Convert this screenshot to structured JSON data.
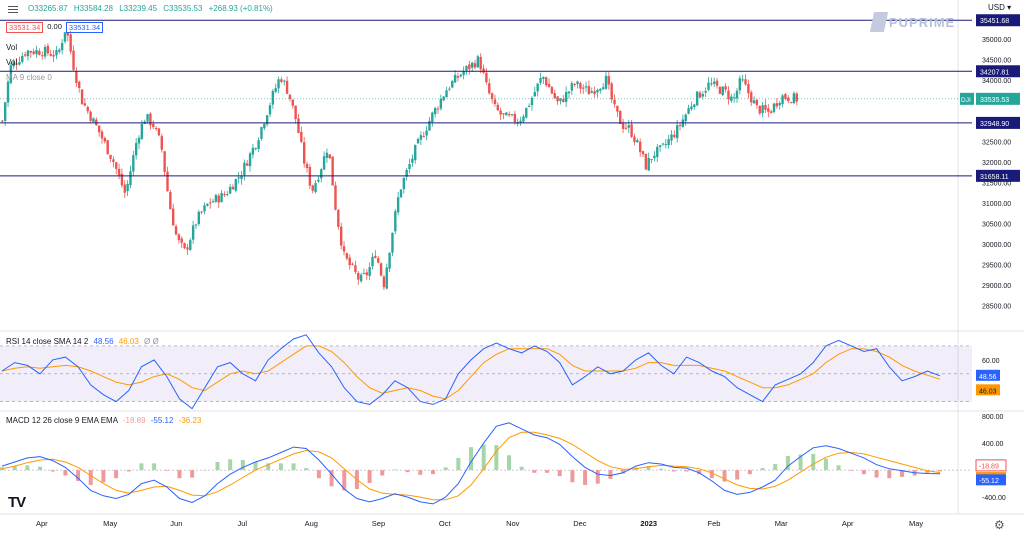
{
  "header": {
    "ohlc": {
      "open": "O33265.87",
      "high": "H33584.28",
      "low": "L33239.45",
      "close": "C33535.53",
      "change": "+268.93 (+0.81%)"
    },
    "sell_price": "33531.34",
    "spread": "0.00",
    "buy_price": "33531.34",
    "legend_vol_1": "Vol",
    "legend_vol_2": "Vol",
    "legend_ma": "MA 9 close 0",
    "currency": "USD",
    "brand": "PUPRIME"
  },
  "rsi_panel": {
    "label": "RSI 14 close SMA 14 2",
    "rsi_value": "48.56",
    "sma_value": "46.03",
    "extra": "Ø Ø"
  },
  "macd_panel": {
    "label": "MACD 12 26 close 9 EMA EMA",
    "hist_value": "-18.89",
    "macd_value": "-55.12",
    "signal_value": "-36.23"
  },
  "colors": {
    "up": "#26a69a",
    "down": "#ef5350",
    "level_line": "#1a1a7a",
    "rsi_line": "#2962ff",
    "rsi_sma": "#ff9800",
    "rsi_band": "#7e57c2",
    "last_price_line": "#26a69a"
  },
  "chart_data": [
    {
      "type": "candlestick",
      "symbol": "DJI",
      "x_ticks": [
        "Apr",
        "May",
        "Jun",
        "Jul",
        "Aug",
        "Sep",
        "Oct",
        "Nov",
        "Dec",
        "2023",
        "Feb",
        "Mar",
        "Apr",
        "May"
      ],
      "y_ticks": [
        28500,
        29000,
        29500,
        30000,
        30500,
        31000,
        31500,
        32000,
        32500,
        33000,
        33500,
        34000,
        34500,
        35000
      ],
      "y_tick_labels": [
        "28500.00",
        "29000.00",
        "29500.00",
        "30000.00",
        "30500.00",
        "31000.00",
        "31500.00",
        "32000.00",
        "32500.00",
        "33000.00",
        "33500.00",
        "34000.00",
        "34500.00",
        "35000.00"
      ],
      "ylim": [
        27900,
        35750
      ],
      "last_price_label": "DJI",
      "last_price": 33535.53,
      "last_price_text": "33535.53",
      "horizontal_levels": [
        {
          "value": 35451.68,
          "label": "35451.68"
        },
        {
          "value": 34207.81,
          "label": "34207.81"
        },
        {
          "value": 32948.9,
          "label": "32948.90"
        },
        {
          "value": 31658.11,
          "label": "31658.11"
        }
      ],
      "approx_close_path": [
        [
          0,
          33000
        ],
        [
          0.01,
          34300
        ],
        [
          0.03,
          34700
        ],
        [
          0.05,
          34700
        ],
        [
          0.07,
          34600
        ],
        [
          0.08,
          35300
        ],
        [
          0.09,
          34300
        ],
        [
          0.1,
          33500
        ],
        [
          0.12,
          32800
        ],
        [
          0.14,
          32000
        ],
        [
          0.155,
          31200
        ],
        [
          0.17,
          32600
        ],
        [
          0.18,
          33100
        ],
        [
          0.19,
          32900
        ],
        [
          0.2,
          32400
        ],
        [
          0.21,
          31000
        ],
        [
          0.22,
          30100
        ],
        [
          0.23,
          29800
        ],
        [
          0.245,
          30600
        ],
        [
          0.26,
          31000
        ],
        [
          0.28,
          31200
        ],
        [
          0.3,
          31700
        ],
        [
          0.32,
          32500
        ],
        [
          0.34,
          33600
        ],
        [
          0.35,
          34100
        ],
        [
          0.36,
          33700
        ],
        [
          0.37,
          33000
        ],
        [
          0.38,
          32000
        ],
        [
          0.39,
          31300
        ],
        [
          0.4,
          31800
        ],
        [
          0.41,
          32400
        ],
        [
          0.42,
          30800
        ],
        [
          0.43,
          29700
        ],
        [
          0.45,
          29100
        ],
        [
          0.46,
          29300
        ],
        [
          0.47,
          29800
        ],
        [
          0.48,
          29000
        ],
        [
          0.49,
          30200
        ],
        [
          0.5,
          31300
        ],
        [
          0.52,
          32300
        ],
        [
          0.54,
          33100
        ],
        [
          0.56,
          33800
        ],
        [
          0.58,
          34200
        ],
        [
          0.6,
          34500
        ],
        [
          0.61,
          33800
        ],
        [
          0.62,
          33300
        ],
        [
          0.63,
          33100
        ],
        [
          0.65,
          33000
        ],
        [
          0.66,
          33300
        ],
        [
          0.68,
          34100
        ],
        [
          0.7,
          33400
        ],
        [
          0.72,
          33900
        ],
        [
          0.74,
          33700
        ],
        [
          0.76,
          34000
        ],
        [
          0.77,
          33300
        ],
        [
          0.78,
          32900
        ],
        [
          0.79,
          32800
        ],
        [
          0.8,
          32400
        ],
        [
          0.81,
          31900
        ],
        [
          0.82,
          32200
        ],
        [
          0.83,
          32300
        ],
        [
          0.85,
          32800
        ],
        [
          0.87,
          33500
        ],
        [
          0.89,
          33900
        ],
        [
          0.91,
          33700
        ],
        [
          0.92,
          33500
        ],
        [
          0.93,
          34000
        ],
        [
          0.95,
          33300
        ],
        [
          0.965,
          33200
        ],
        [
          0.98,
          33600
        ],
        [
          1.0,
          33535.53
        ]
      ]
    },
    {
      "type": "line",
      "title": "RSI 14 close SMA 14 2",
      "y_ticks": [
        40,
        60
      ],
      "y_tick_labels": [
        "40.00",
        "60.00"
      ],
      "ylim": [
        24,
        80
      ],
      "band": [
        30,
        70
      ],
      "series": [
        {
          "name": "RSI",
          "values": [
            52,
            58,
            56,
            50,
            60,
            62,
            55,
            42,
            35,
            30,
            38,
            55,
            60,
            48,
            32,
            25,
            40,
            55,
            58,
            50,
            45,
            60,
            68,
            75,
            78,
            65,
            55,
            40,
            30,
            28,
            35,
            45,
            40,
            30,
            28,
            32,
            50,
            60,
            68,
            72,
            68,
            65,
            70,
            66,
            58,
            42,
            48,
            55,
            50,
            52,
            60,
            65,
            56,
            50,
            62,
            58,
            52,
            48,
            40,
            35,
            30,
            42,
            46,
            50,
            58,
            70,
            74,
            70,
            66,
            68,
            55,
            45,
            48,
            52,
            48.56
          ]
        },
        {
          "name": "SMA",
          "values": [
            52,
            54,
            55,
            54,
            55,
            56,
            55,
            52,
            48,
            44,
            42,
            44,
            48,
            50,
            46,
            40,
            38,
            44,
            50,
            52,
            50,
            52,
            58,
            64,
            70,
            70,
            66,
            58,
            48,
            40,
            36,
            38,
            40,
            38,
            34,
            32,
            38,
            48,
            58,
            64,
            68,
            68,
            68,
            68,
            64,
            56,
            52,
            52,
            52,
            52,
            54,
            58,
            58,
            56,
            56,
            56,
            54,
            52,
            48,
            44,
            40,
            40,
            42,
            46,
            50,
            58,
            64,
            68,
            68,
            66,
            62,
            56,
            52,
            49,
            46.03
          ]
        }
      ]
    },
    {
      "type": "bar+line",
      "title": "MACD 12 26 close 9 EMA EMA",
      "y_ticks": [
        -400,
        400,
        800
      ],
      "y_tick_labels": [
        "-400.00",
        "400.00",
        "800.00"
      ],
      "ylim": [
        -620,
        860
      ],
      "series": [
        {
          "name": "MACD",
          "values": [
            60,
            120,
            180,
            200,
            140,
            40,
            -120,
            -300,
            -380,
            -420,
            -360,
            -200,
            -150,
            -250,
            -420,
            -480,
            -380,
            -200,
            -60,
            40,
            120,
            180,
            260,
            340,
            320,
            150,
            -60,
            -280,
            -420,
            -470,
            -420,
            -350,
            -400,
            -470,
            -500,
            -400,
            -200,
            120,
            400,
            650,
            700,
            610,
            520,
            480,
            380,
            200,
            40,
            -60,
            -80,
            -40,
            60,
            110,
            90,
            40,
            30,
            -40,
            -160,
            -300,
            -360,
            -330,
            -250,
            -150,
            60,
            200,
            330,
            360,
            320,
            250,
            180,
            80,
            20,
            -10,
            -40,
            -50,
            -55.12
          ]
        },
        {
          "name": "Signal",
          "values": [
            20,
            60,
            110,
            150,
            160,
            120,
            40,
            -80,
            -200,
            -300,
            -340,
            -300,
            -250,
            -240,
            -300,
            -370,
            -380,
            -320,
            -220,
            -110,
            0,
            80,
            160,
            240,
            290,
            270,
            180,
            20,
            -140,
            -280,
            -340,
            -360,
            -370,
            -400,
            -440,
            -440,
            -380,
            -220,
            20,
            280,
            480,
            560,
            560,
            520,
            470,
            380,
            260,
            140,
            50,
            10,
            20,
            50,
            70,
            60,
            50,
            20,
            -40,
            -130,
            -220,
            -270,
            -280,
            -240,
            -150,
            -30,
            90,
            190,
            250,
            260,
            240,
            190,
            140,
            90,
            40,
            -10,
            -36.23
          ]
        },
        {
          "name": "Histogram",
          "values": [
            40,
            60,
            70,
            50,
            -20,
            -80,
            -160,
            -220,
            -180,
            -120,
            -20,
            100,
            100,
            -10,
            -120,
            -110,
            0,
            120,
            160,
            150,
            120,
            100,
            100,
            100,
            30,
            -120,
            -240,
            -300,
            -280,
            -190,
            -80,
            10,
            -30,
            -70,
            -60,
            40,
            180,
            340,
            380,
            370,
            220,
            50,
            -40,
            -40,
            -90,
            -180,
            -220,
            -200,
            -130,
            -50,
            40,
            60,
            20,
            -20,
            -20,
            -60,
            -120,
            -170,
            -140,
            -60,
            30,
            90,
            210,
            230,
            240,
            170,
            70,
            -10,
            -60,
            -110,
            -120,
            -100,
            -80,
            -40,
            -18.89
          ]
        }
      ]
    }
  ]
}
